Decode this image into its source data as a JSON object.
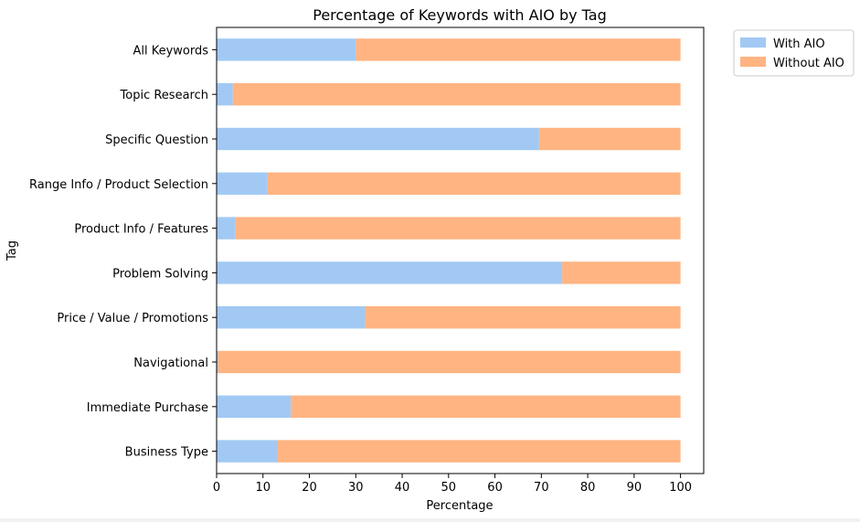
{
  "chart_data": {
    "type": "bar",
    "orientation": "horizontal",
    "stacked": true,
    "title": "Percentage of Keywords with AIO by Tag",
    "xlabel": "Percentage",
    "ylabel": "Tag",
    "xlim": [
      0,
      105
    ],
    "x_ticks": [
      "0",
      "10",
      "20",
      "30",
      "40",
      "50",
      "60",
      "70",
      "80",
      "90",
      "100"
    ],
    "categories": [
      "All Keywords",
      "Topic Research",
      "Specific Question",
      "Range Info / Product Selection",
      "Product Info / Features",
      "Problem Solving",
      "Price / Value / Promotions",
      "Navigational",
      "Immediate Purchase",
      "Business Type"
    ],
    "series": [
      {
        "name": "With AIO",
        "color": "#a1c9f4",
        "values": [
          30,
          3.5,
          69.5,
          11,
          4,
          74.5,
          32,
          0.3,
          16,
          13
        ]
      },
      {
        "name": "Without AIO",
        "color": "#ffb482",
        "values": [
          70,
          96.5,
          30.5,
          89,
          96,
          25.5,
          68,
          99.7,
          84,
          87
        ]
      }
    ],
    "legend_position": "outside-top-right",
    "grid": false
  }
}
